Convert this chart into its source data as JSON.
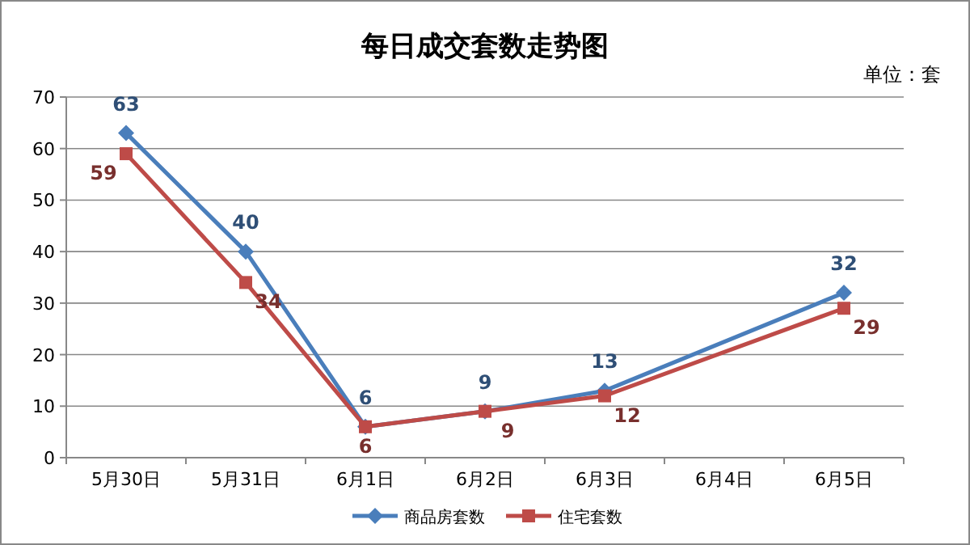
{
  "chart_data": {
    "type": "line",
    "title": "每日成交套数走势图",
    "annotations": [
      "单位：套"
    ],
    "categories": [
      "5月30日",
      "5月31日",
      "6月1日",
      "6月2日",
      "6月3日",
      "6月4日",
      "6月5日"
    ],
    "series": [
      {
        "name": "商品房套数",
        "color": "#4a7ebb",
        "marker": "diamond",
        "values": [
          63,
          40,
          6,
          9,
          13,
          null,
          32
        ]
      },
      {
        "name": "住宅套数",
        "color": "#be4b48",
        "marker": "square",
        "values": [
          59,
          34,
          6,
          9,
          12,
          null,
          29
        ]
      }
    ],
    "ylim": [
      0,
      70
    ],
    "yticks": [
      0,
      10,
      20,
      30,
      40,
      50,
      60,
      70
    ],
    "grid": "y",
    "legend": "bottom",
    "data_labels": true,
    "line_style": "solid"
  }
}
